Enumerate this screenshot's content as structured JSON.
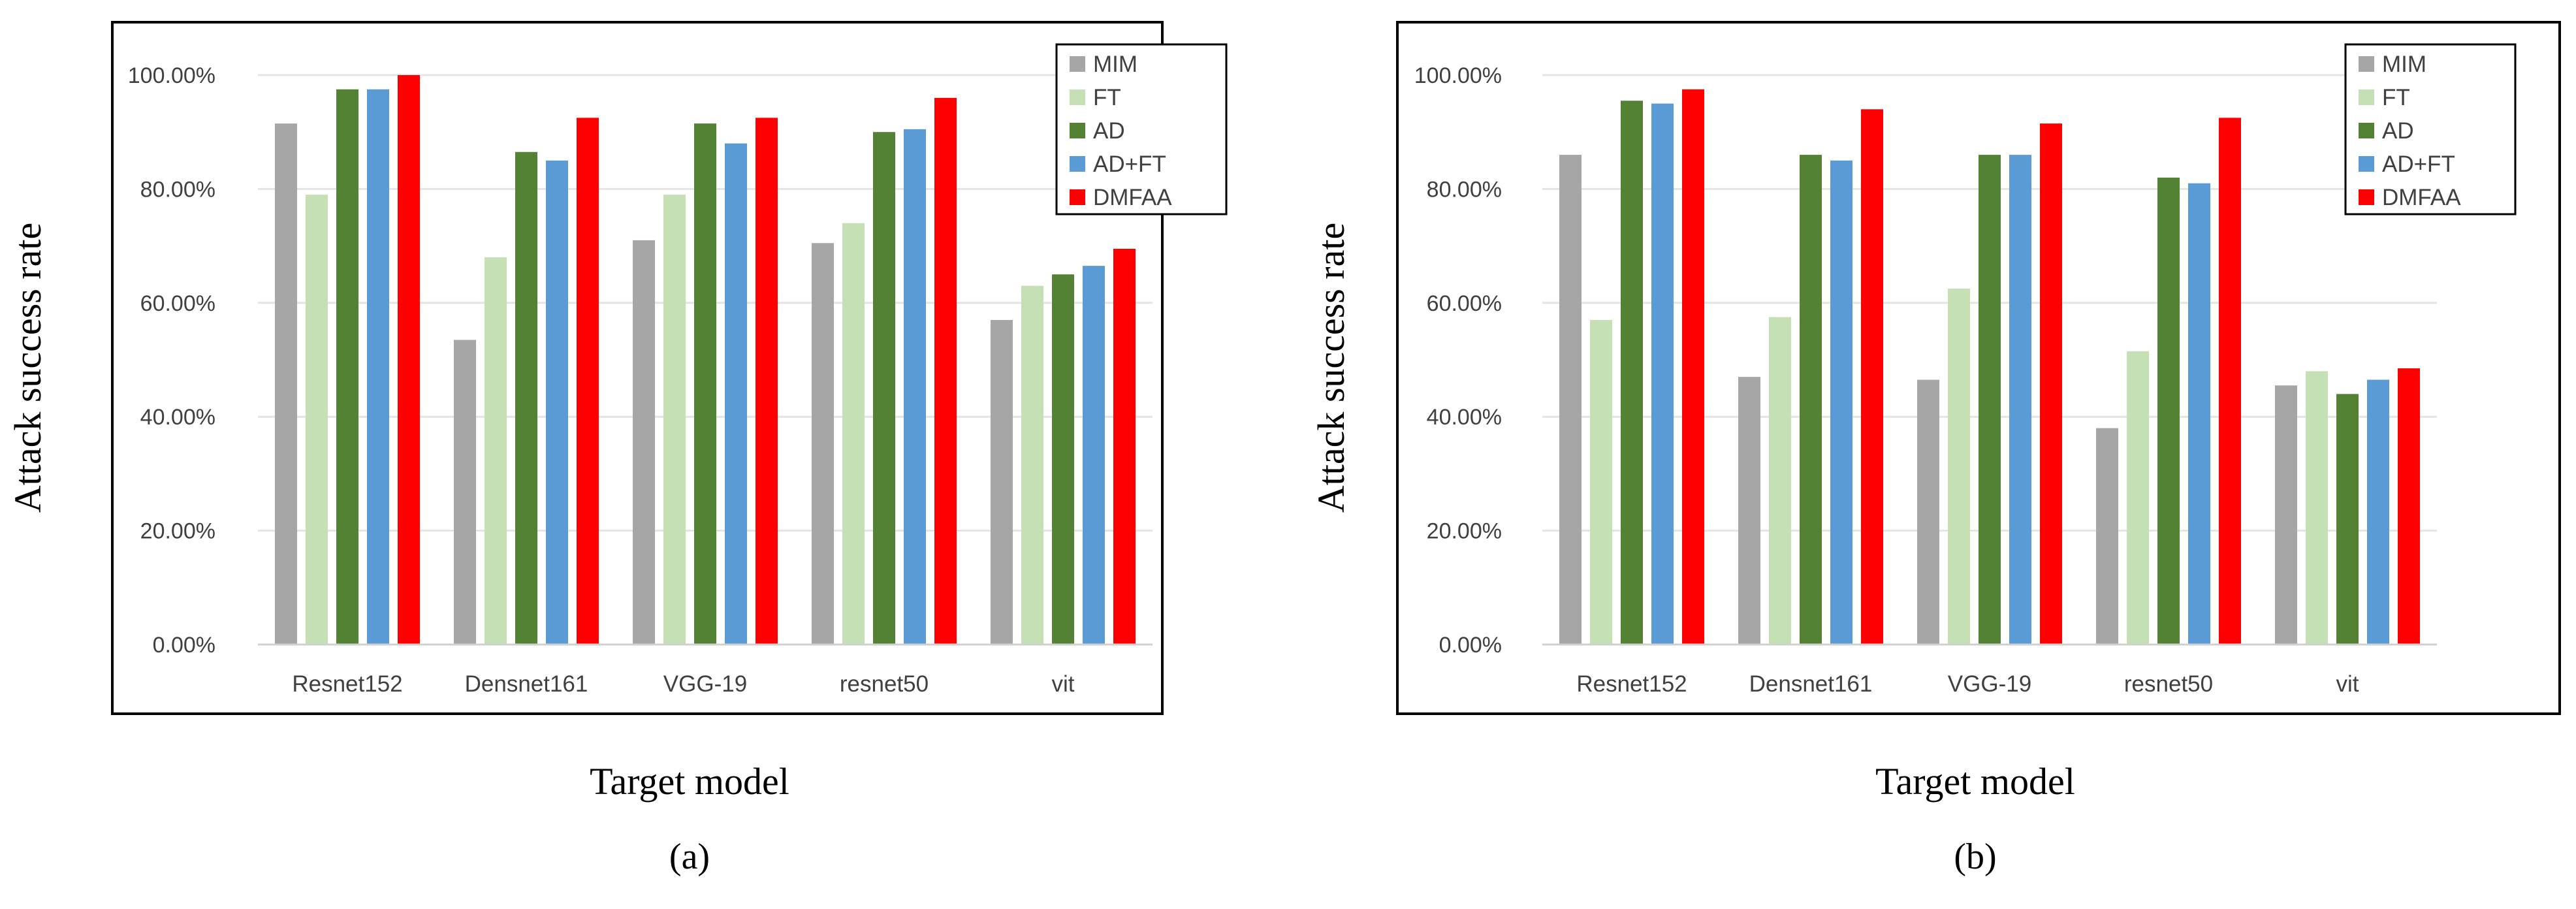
{
  "chart_data": [
    {
      "type": "bar",
      "panel": "a",
      "caption": "(a)",
      "categories": [
        "Resnet152",
        "Densnet161",
        "VGG-19",
        "resnet50",
        "vit"
      ],
      "series": [
        {
          "name": "MIM",
          "color": "#a6a6a6",
          "values": [
            91.5,
            53.5,
            71.0,
            70.5,
            57.0
          ]
        },
        {
          "name": "FT",
          "color": "#c5e0b4",
          "values": [
            79.0,
            68.0,
            79.0,
            74.0,
            63.0
          ]
        },
        {
          "name": "AD",
          "color": "#548235",
          "values": [
            97.5,
            86.5,
            91.5,
            90.0,
            65.0
          ]
        },
        {
          "name": "AD+FT",
          "color": "#5b9bd5",
          "values": [
            97.5,
            85.0,
            88.0,
            90.5,
            66.5
          ]
        },
        {
          "name": "DMFAA",
          "color": "#ff0000",
          "values": [
            100.0,
            92.5,
            92.5,
            96.0,
            69.5
          ]
        }
      ],
      "yticks": [
        "0.00%",
        "20.00%",
        "40.00%",
        "60.00%",
        "80.00%",
        "100.00%"
      ],
      "ylim": [
        0,
        100
      ],
      "ylabel": "Attack success rate",
      "xlabel": "Target model",
      "legend_position": "top-right"
    },
    {
      "type": "bar",
      "panel": "b",
      "caption": "(b)",
      "categories": [
        "Resnet152",
        "Densnet161",
        "VGG-19",
        "resnet50",
        "vit"
      ],
      "series": [
        {
          "name": "MIM",
          "color": "#a6a6a6",
          "values": [
            86.0,
            47.0,
            46.5,
            38.0,
            45.5
          ]
        },
        {
          "name": "FT",
          "color": "#c5e0b4",
          "values": [
            57.0,
            57.5,
            62.5,
            51.5,
            48.0
          ]
        },
        {
          "name": "AD",
          "color": "#548235",
          "values": [
            95.5,
            86.0,
            86.0,
            82.0,
            44.0
          ]
        },
        {
          "name": "AD+FT",
          "color": "#5b9bd5",
          "values": [
            95.0,
            85.0,
            86.0,
            81.0,
            46.5
          ]
        },
        {
          "name": "DMFAA",
          "color": "#ff0000",
          "values": [
            97.5,
            94.0,
            91.5,
            92.5,
            48.5
          ]
        }
      ],
      "yticks": [
        "0.00%",
        "20.00%",
        "40.00%",
        "60.00%",
        "80.00%",
        "100.00%"
      ],
      "ylim": [
        0,
        100
      ],
      "ylabel": "Attack success rate",
      "xlabel": "Target model",
      "legend_position": "top-right"
    }
  ]
}
